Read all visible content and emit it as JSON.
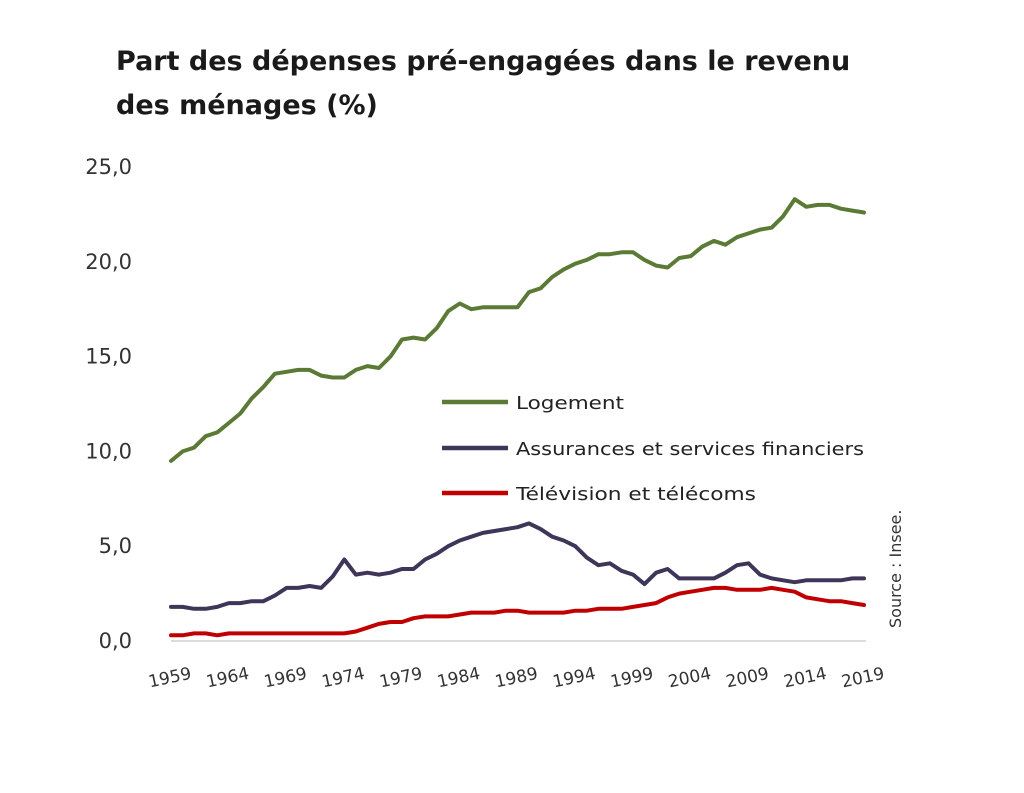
{
  "chart_data": {
    "type": "line",
    "title": "Part des dépenses pré-engagées dans le revenu des ménages (%)",
    "xlabel": "",
    "ylabel": "",
    "xlim": [
      1959,
      2019
    ],
    "ylim": [
      0,
      25
    ],
    "y_ticks": [
      "0,0",
      "5,0",
      "10,0",
      "15,0",
      "20,0",
      "25,0"
    ],
    "y_tick_values": [
      0,
      5,
      10,
      15,
      20,
      25
    ],
    "x_ticks": [
      "1959",
      "1964",
      "1969",
      "1974",
      "1979",
      "1984",
      "1989",
      "1994",
      "1999",
      "2004",
      "2009",
      "2014",
      "2019"
    ],
    "x_tick_values": [
      1959,
      1964,
      1969,
      1974,
      1979,
      1984,
      1989,
      1994,
      1999,
      2004,
      2009,
      2014,
      2019
    ],
    "grid": false,
    "legend_position": "center-right",
    "source": "Source : Insee.",
    "x": [
      1959,
      1960,
      1961,
      1962,
      1963,
      1964,
      1965,
      1966,
      1967,
      1968,
      1969,
      1970,
      1971,
      1972,
      1973,
      1974,
      1975,
      1976,
      1977,
      1978,
      1979,
      1980,
      1981,
      1982,
      1983,
      1984,
      1985,
      1986,
      1987,
      1988,
      1989,
      1990,
      1991,
      1992,
      1993,
      1994,
      1995,
      1996,
      1997,
      1998,
      1999,
      2000,
      2001,
      2002,
      2003,
      2004,
      2005,
      2006,
      2007,
      2008,
      2009,
      2010,
      2011,
      2012,
      2013,
      2014,
      2015,
      2016,
      2017,
      2018,
      2019
    ],
    "series": [
      {
        "name": "Logement",
        "color": "#5b7a35",
        "values": [
          9.5,
          10.0,
          10.2,
          10.8,
          11.0,
          11.5,
          12.0,
          12.8,
          13.4,
          14.1,
          14.2,
          14.3,
          14.3,
          14.0,
          13.9,
          13.9,
          14.3,
          14.5,
          14.4,
          15.0,
          15.9,
          16.0,
          15.9,
          16.5,
          17.4,
          17.8,
          17.5,
          17.6,
          17.6,
          17.6,
          17.6,
          18.4,
          18.6,
          19.2,
          19.6,
          19.9,
          20.1,
          20.4,
          20.4,
          20.5,
          20.5,
          20.1,
          19.8,
          19.7,
          20.2,
          20.3,
          20.8,
          21.1,
          20.9,
          21.3,
          21.5,
          21.7,
          21.8,
          22.4,
          23.3,
          22.9,
          23.0,
          23.0,
          22.8,
          22.7,
          22.6
        ]
      },
      {
        "name": "Assurances et services financiers",
        "color": "#3e3558",
        "values": [
          1.8,
          1.8,
          1.7,
          1.7,
          1.8,
          2.0,
          2.0,
          2.1,
          2.1,
          2.4,
          2.8,
          2.8,
          2.9,
          2.8,
          3.4,
          4.3,
          3.5,
          3.6,
          3.5,
          3.6,
          3.8,
          3.8,
          4.3,
          4.6,
          5.0,
          5.3,
          5.5,
          5.7,
          5.8,
          5.9,
          6.0,
          6.2,
          5.9,
          5.5,
          5.3,
          5.0,
          4.4,
          4.0,
          4.1,
          3.7,
          3.5,
          3.0,
          3.6,
          3.8,
          3.3,
          3.3,
          3.3,
          3.3,
          3.6,
          4.0,
          4.1,
          3.5,
          3.3,
          3.2,
          3.1,
          3.2,
          3.2,
          3.2,
          3.2,
          3.3,
          3.3
        ]
      },
      {
        "name": "Télévision et télécoms",
        "color": "#c00000",
        "values": [
          0.3,
          0.3,
          0.4,
          0.4,
          0.3,
          0.4,
          0.4,
          0.4,
          0.4,
          0.4,
          0.4,
          0.4,
          0.4,
          0.4,
          0.4,
          0.4,
          0.5,
          0.7,
          0.9,
          1.0,
          1.0,
          1.2,
          1.3,
          1.3,
          1.3,
          1.4,
          1.5,
          1.5,
          1.5,
          1.6,
          1.6,
          1.5,
          1.5,
          1.5,
          1.5,
          1.6,
          1.6,
          1.7,
          1.7,
          1.7,
          1.8,
          1.9,
          2.0,
          2.3,
          2.5,
          2.6,
          2.7,
          2.8,
          2.8,
          2.7,
          2.7,
          2.7,
          2.8,
          2.7,
          2.6,
          2.3,
          2.2,
          2.1,
          2.1,
          2.0,
          1.9
        ]
      }
    ]
  }
}
